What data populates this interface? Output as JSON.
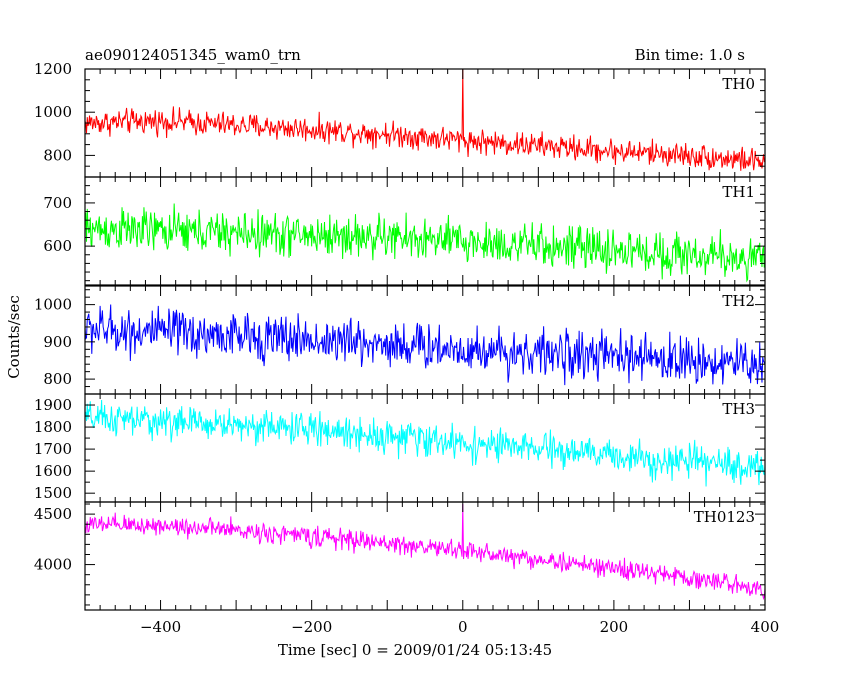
{
  "header": {
    "title": "ae090124051345_wam0_trn",
    "bin_time": "Bin time: 1.0 s"
  },
  "chart_data": {
    "type": "line",
    "title": "ae090124051345_wam0_trn",
    "xlabel": "Time [sec] 0 = 2009/01/24 05:13:45",
    "ylabel": "Counts/sec",
    "xlim": [
      -500,
      400
    ],
    "x_ticks": [
      -400,
      -200,
      0,
      200,
      400
    ],
    "x_tick_labels": [
      "−400",
      "−200",
      "0",
      "200",
      "400"
    ],
    "x_step": 1,
    "x_range": [
      -500,
      400
    ],
    "grid": false,
    "panels": [
      {
        "name": "TH0",
        "color": "#ff0000",
        "ylim": [
          700,
          1200
        ],
        "y_ticks": [
          800,
          1000,
          1200
        ],
        "trend": [
          [
            -500,
            950
          ],
          [
            -400,
            960
          ],
          [
            -300,
            940
          ],
          [
            -200,
            920
          ],
          [
            -100,
            900
          ],
          [
            0,
            870
          ],
          [
            100,
            845
          ],
          [
            200,
            820
          ],
          [
            300,
            800
          ],
          [
            400,
            770
          ]
        ],
        "noise": 35,
        "spikes": [
          {
            "x": 0,
            "y": 1200
          }
        ]
      },
      {
        "name": "TH1",
        "color": "#00ff00",
        "ylim": [
          510,
          760
        ],
        "y_ticks": [
          600,
          700
        ],
        "trend": [
          [
            -500,
            640
          ],
          [
            -400,
            635
          ],
          [
            -300,
            630
          ],
          [
            -200,
            625
          ],
          [
            -100,
            620
          ],
          [
            0,
            610
          ],
          [
            100,
            600
          ],
          [
            200,
            590
          ],
          [
            300,
            580
          ],
          [
            400,
            570
          ]
        ],
        "noise": 30,
        "spikes": []
      },
      {
        "name": "TH2",
        "color": "#0000ff",
        "ylim": [
          760,
          1050
        ],
        "y_ticks": [
          800,
          900,
          1000
        ],
        "trend": [
          [
            -500,
            935
          ],
          [
            -400,
            925
          ],
          [
            -300,
            915
          ],
          [
            -200,
            905
          ],
          [
            -100,
            895
          ],
          [
            0,
            880
          ],
          [
            100,
            870
          ],
          [
            200,
            860
          ],
          [
            300,
            850
          ],
          [
            400,
            840
          ]
        ],
        "noise": 38,
        "spikes": []
      },
      {
        "name": "TH3",
        "color": "#00ffff",
        "ylim": [
          1460,
          1950
        ],
        "y_ticks": [
          1500,
          1600,
          1700,
          1800,
          1900
        ],
        "trend": [
          [
            -500,
            1840
          ],
          [
            -400,
            1825
          ],
          [
            -300,
            1810
          ],
          [
            -200,
            1790
          ],
          [
            -100,
            1760
          ],
          [
            0,
            1725
          ],
          [
            100,
            1700
          ],
          [
            200,
            1670
          ],
          [
            300,
            1640
          ],
          [
            400,
            1615
          ]
        ],
        "noise": 45,
        "spikes": []
      },
      {
        "name": "TH0123",
        "color": "#ff00ff",
        "ylim": [
          3550,
          4620
        ],
        "y_ticks": [
          4000,
          4500
        ],
        "trend": [
          [
            -500,
            4390
          ],
          [
            -400,
            4390
          ],
          [
            -300,
            4340
          ],
          [
            -200,
            4280
          ],
          [
            -100,
            4210
          ],
          [
            0,
            4140
          ],
          [
            100,
            4050
          ],
          [
            200,
            3960
          ],
          [
            300,
            3870
          ],
          [
            400,
            3760
          ]
        ],
        "noise": 60,
        "spikes": [
          {
            "x": 0,
            "y": 4600
          }
        ]
      }
    ]
  }
}
